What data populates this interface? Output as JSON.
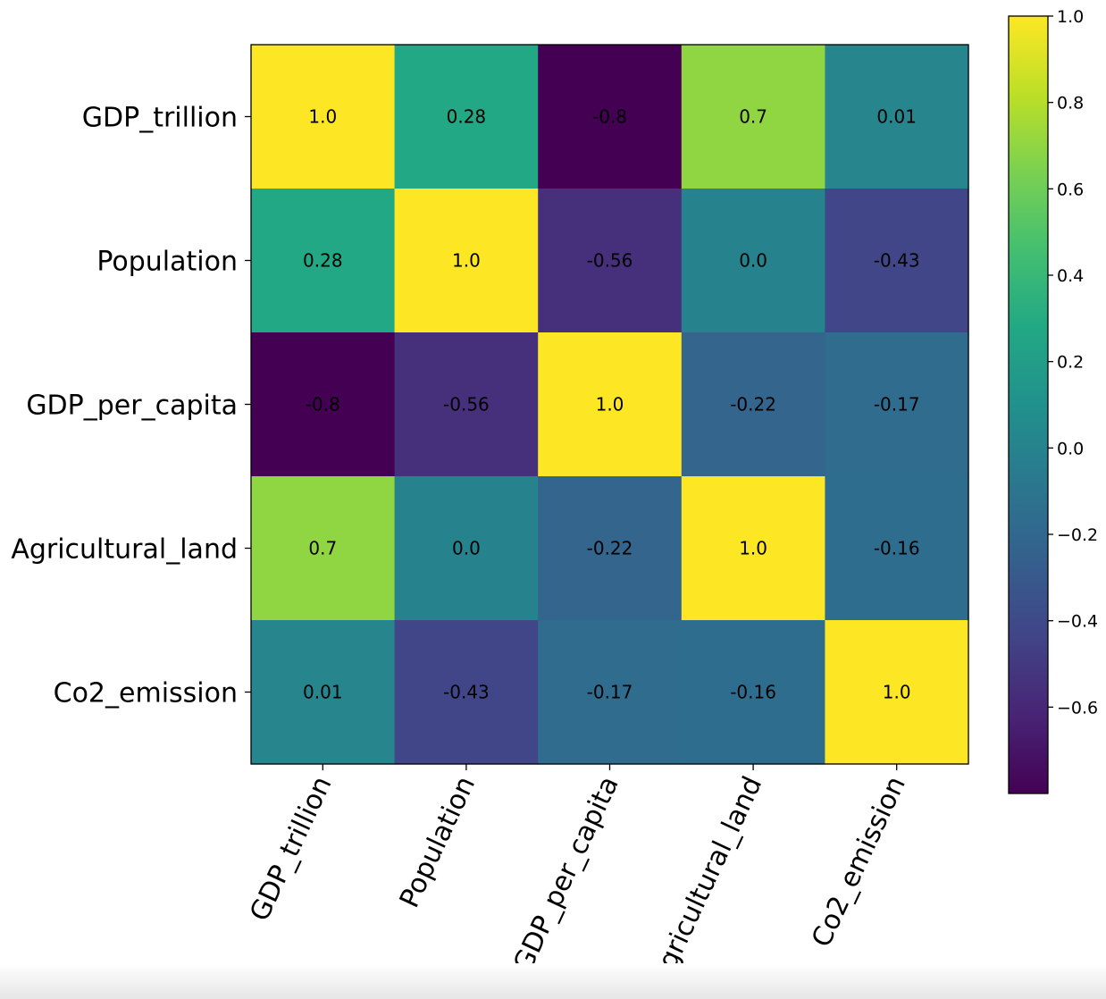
{
  "chart_data": {
    "type": "heatmap",
    "colormap": "viridis",
    "row_labels": [
      "GDP_trillion",
      "Population",
      "GDP_per_capita",
      "Agricultural_land",
      "Co2_emission"
    ],
    "col_labels": [
      "GDP_trillion",
      "Population",
      "GDP_per_capita",
      "Agricultural_land",
      "Co2_emission"
    ],
    "values": [
      [
        1.0,
        0.28,
        -0.8,
        0.7,
        0.01
      ],
      [
        0.28,
        1.0,
        -0.56,
        0.0,
        -0.43
      ],
      [
        -0.8,
        -0.56,
        1.0,
        -0.22,
        -0.17
      ],
      [
        0.7,
        0.0,
        -0.22,
        1.0,
        -0.16
      ],
      [
        0.01,
        -0.43,
        -0.17,
        -0.16,
        1.0
      ]
    ],
    "cell_labels": [
      [
        "1.0",
        "0.28",
        "-0.8",
        "0.7",
        "0.01"
      ],
      [
        "0.28",
        "1.0",
        "-0.56",
        "0.0",
        "-0.43"
      ],
      [
        "-0.8",
        "-0.56",
        "1.0",
        "-0.22",
        "-0.17"
      ],
      [
        "0.7",
        "0.0",
        "-0.22",
        "1.0",
        "-0.16"
      ],
      [
        "0.01",
        "-0.43",
        "-0.17",
        "-0.16",
        "1.0"
      ]
    ],
    "x_tick_rotation_deg": 65,
    "colorbar": {
      "range": [
        -0.8,
        1.0
      ],
      "ticks": [
        1.0,
        0.8,
        0.6,
        0.4,
        0.2,
        0.0,
        -0.2,
        -0.4,
        -0.6
      ],
      "tick_labels": [
        "1.0",
        "0.8",
        "0.6",
        "0.4",
        "0.2",
        "0.0",
        "−0.2",
        "−0.4",
        "−0.6"
      ]
    },
    "title": "",
    "xlabel": "",
    "ylabel": ""
  }
}
